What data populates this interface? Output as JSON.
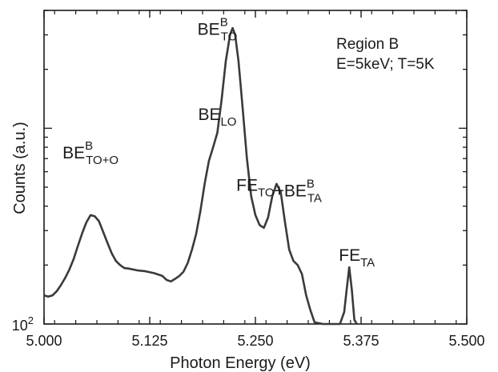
{
  "chart_data": {
    "type": "line",
    "title": "",
    "xlabel": "Photon Energy (eV)",
    "ylabel": "Counts (a.u.)",
    "y_scale": "log",
    "xlim": [
      5.0,
      5.5
    ],
    "ylim": [
      100,
      4000
    ],
    "x_ticks": [
      5.0,
      5.125,
      5.25,
      5.375,
      5.5
    ],
    "x_tick_labels": [
      "5.000",
      "5.125",
      "5.250",
      "5.375",
      "5.500"
    ],
    "y_tick_label": {
      "base": "10",
      "exp": "2"
    },
    "grid": false,
    "line_color": "#3a3a3a",
    "region_labels": [
      "Region B",
      "E=5keV; T=5K"
    ],
    "annotations": [
      {
        "name": "beb-to-o",
        "main": "BE",
        "sup": "B",
        "sub": "TO+O",
        "x": 5.055,
        "y": 700
      },
      {
        "name": "be-lo",
        "main": "BE",
        "sub": "LO",
        "x": 5.205,
        "y": 1100
      },
      {
        "name": "beb-to",
        "main": "BE",
        "sup": "B",
        "sub": "TO",
        "x": 5.205,
        "y": 3000
      },
      {
        "name": "fe-to-beb-ta",
        "main": "FE",
        "sub": "TO",
        "plus": "+",
        "main2": "BE",
        "sup2": "B",
        "sub2": "TA",
        "x": 5.278,
        "y": 480
      },
      {
        "name": "fe-ta",
        "main": "FE",
        "sub": "TA",
        "x": 5.37,
        "y": 210
      }
    ],
    "series": [
      {
        "points": [
          [
            5.0,
            140
          ],
          [
            5.005,
            138
          ],
          [
            5.01,
            140
          ],
          [
            5.015,
            147
          ],
          [
            5.02,
            158
          ],
          [
            5.025,
            172
          ],
          [
            5.03,
            190
          ],
          [
            5.035,
            215
          ],
          [
            5.04,
            250
          ],
          [
            5.045,
            290
          ],
          [
            5.05,
            330
          ],
          [
            5.055,
            360
          ],
          [
            5.06,
            355
          ],
          [
            5.065,
            335
          ],
          [
            5.07,
            295
          ],
          [
            5.075,
            260
          ],
          [
            5.08,
            230
          ],
          [
            5.085,
            210
          ],
          [
            5.09,
            200
          ],
          [
            5.095,
            193
          ],
          [
            5.1,
            192
          ],
          [
            5.11,
            188
          ],
          [
            5.12,
            186
          ],
          [
            5.13,
            182
          ],
          [
            5.14,
            176
          ],
          [
            5.145,
            168
          ],
          [
            5.15,
            165
          ],
          [
            5.155,
            170
          ],
          [
            5.16,
            176
          ],
          [
            5.165,
            185
          ],
          [
            5.17,
            205
          ],
          [
            5.175,
            240
          ],
          [
            5.18,
            290
          ],
          [
            5.185,
            380
          ],
          [
            5.19,
            520
          ],
          [
            5.195,
            680
          ],
          [
            5.2,
            800
          ],
          [
            5.205,
            950
          ],
          [
            5.21,
            1400
          ],
          [
            5.215,
            2200
          ],
          [
            5.22,
            3000
          ],
          [
            5.223,
            3250
          ],
          [
            5.226,
            3000
          ],
          [
            5.23,
            2200
          ],
          [
            5.235,
            1250
          ],
          [
            5.24,
            700
          ],
          [
            5.245,
            450
          ],
          [
            5.25,
            360
          ],
          [
            5.255,
            320
          ],
          [
            5.26,
            310
          ],
          [
            5.265,
            350
          ],
          [
            5.27,
            450
          ],
          [
            5.275,
            520
          ],
          [
            5.28,
            470
          ],
          [
            5.285,
            330
          ],
          [
            5.29,
            240
          ],
          [
            5.295,
            210
          ],
          [
            5.3,
            200
          ],
          [
            5.305,
            180
          ],
          [
            5.31,
            140
          ],
          [
            5.315,
            118
          ],
          [
            5.32,
            102
          ],
          [
            5.33,
            100
          ],
          [
            5.34,
            100
          ],
          [
            5.35,
            100
          ],
          [
            5.355,
            115
          ],
          [
            5.358,
            150
          ],
          [
            5.361,
            195
          ],
          [
            5.364,
            150
          ],
          [
            5.367,
            105
          ],
          [
            5.37,
            100
          ]
        ]
      }
    ]
  }
}
